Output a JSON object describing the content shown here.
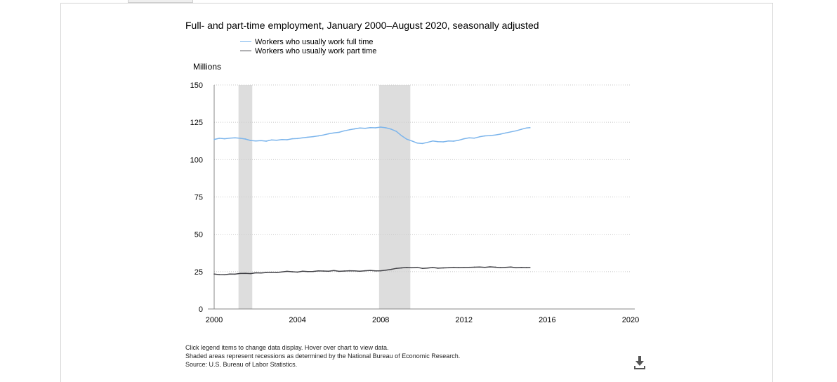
{
  "chart_data": {
    "type": "line",
    "title": "Full- and part-time employment, January 2000–August 2020, seasonally adjusted",
    "ylabel": "Millions",
    "xlabel": "",
    "xlim": [
      2000,
      2020
    ],
    "ylim": [
      0,
      150
    ],
    "x_ticks": [
      "2000",
      "2004",
      "2008",
      "2012",
      "2016",
      "2020"
    ],
    "y_ticks": [
      "0",
      "25",
      "50",
      "75",
      "100",
      "125",
      "150"
    ],
    "grid": "horizontal dotted",
    "legend_position": "top",
    "recessions": [
      [
        2001.17,
        2001.83
      ],
      [
        2007.92,
        2009.42
      ]
    ],
    "series": [
      {
        "name": "Workers who usually work full time",
        "color": "#7cb5ec",
        "x": [
          2000.0,
          2000.25,
          2000.5,
          2000.75,
          2001.0,
          2001.25,
          2001.5,
          2001.75,
          2002.0,
          2002.25,
          2002.5,
          2002.75,
          2003.0,
          2003.25,
          2003.5,
          2003.75,
          2004.0,
          2004.25,
          2004.5,
          2004.75,
          2005.0,
          2005.25,
          2005.5,
          2005.75,
          2006.0,
          2006.25,
          2006.5,
          2006.75,
          2007.0,
          2007.25,
          2007.5,
          2007.75,
          2008.0,
          2008.25,
          2008.5,
          2008.75,
          2009.0,
          2009.25,
          2009.5,
          2009.75,
          2010.0,
          2010.25,
          2010.5,
          2010.75,
          2011.0,
          2011.25,
          2011.5,
          2011.75,
          2012.0,
          2012.25,
          2012.5,
          2012.75,
          2013.0,
          2013.25,
          2013.5,
          2013.75,
          2014.0,
          2014.25,
          2014.5,
          2014.75,
          2015.0,
          2015.17
        ],
        "values": [
          113.5,
          114.3,
          114.0,
          114.4,
          114.6,
          114.3,
          113.8,
          112.8,
          112.5,
          112.7,
          112.4,
          113.2,
          113.0,
          113.4,
          113.3,
          114.0,
          114.1,
          114.6,
          115.0,
          115.4,
          115.9,
          116.5,
          117.3,
          117.9,
          118.3,
          119.3,
          120.0,
          120.6,
          121.2,
          121.0,
          121.4,
          121.3,
          121.8,
          121.3,
          120.4,
          118.9,
          116.0,
          113.7,
          112.5,
          111.1,
          110.8,
          111.6,
          112.5,
          112.0,
          111.9,
          112.5,
          112.4,
          113.0,
          114.0,
          114.6,
          114.4,
          115.3,
          115.9,
          116.1,
          116.5,
          117.1,
          117.9,
          118.6,
          119.3,
          120.3,
          121.2,
          121.4
        ]
      },
      {
        "name": "Workers who usually work part time",
        "color": "#434348",
        "x": [
          2000.0,
          2000.25,
          2000.5,
          2000.75,
          2001.0,
          2001.25,
          2001.5,
          2001.75,
          2002.0,
          2002.25,
          2002.5,
          2002.75,
          2003.0,
          2003.25,
          2003.5,
          2003.75,
          2004.0,
          2004.25,
          2004.5,
          2004.75,
          2005.0,
          2005.25,
          2005.5,
          2005.75,
          2006.0,
          2006.25,
          2006.5,
          2006.75,
          2007.0,
          2007.25,
          2007.5,
          2007.75,
          2008.0,
          2008.25,
          2008.5,
          2008.75,
          2009.0,
          2009.25,
          2009.5,
          2009.75,
          2010.0,
          2010.25,
          2010.5,
          2010.75,
          2011.0,
          2011.25,
          2011.5,
          2011.75,
          2012.0,
          2012.25,
          2012.5,
          2012.75,
          2013.0,
          2013.25,
          2013.5,
          2013.75,
          2014.0,
          2014.25,
          2014.5,
          2014.75,
          2015.0,
          2015.17
        ],
        "values": [
          23.4,
          23.0,
          22.9,
          23.4,
          23.3,
          23.8,
          23.9,
          23.7,
          24.2,
          24.1,
          24.4,
          24.6,
          24.4,
          24.8,
          25.2,
          24.9,
          24.7,
          25.3,
          25.0,
          25.1,
          25.5,
          25.4,
          25.3,
          25.7,
          25.2,
          25.4,
          25.6,
          25.5,
          25.3,
          25.6,
          25.8,
          25.5,
          25.6,
          26.0,
          26.5,
          27.2,
          27.5,
          27.8,
          27.6,
          27.9,
          27.2,
          27.4,
          27.8,
          27.3,
          27.5,
          27.6,
          27.9,
          27.7,
          27.8,
          27.9,
          28.0,
          28.1,
          27.9,
          28.2,
          28.0,
          27.7,
          27.9,
          28.1,
          27.6,
          27.8,
          27.7,
          27.8
        ]
      }
    ]
  },
  "notes": {
    "line1": "Click legend items to change data display. Hover over chart to view data.",
    "line2": "Shaded areas represent recessions as determined by the National Bureau of Economic Research.",
    "line3": "Source: U.S. Bureau of Labor Statistics."
  },
  "icons": {
    "download": "download-icon"
  }
}
